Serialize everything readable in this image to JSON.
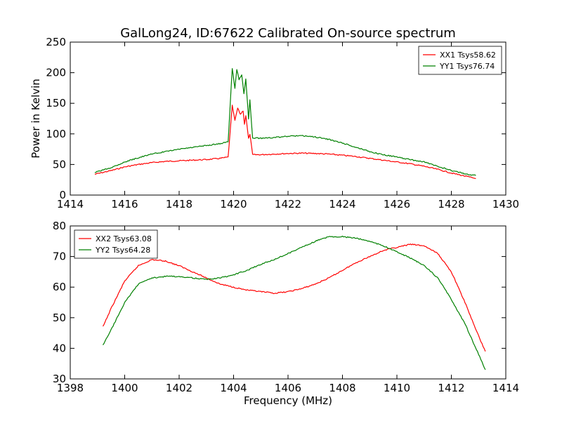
{
  "title": "GalLong24, ID:67622 Calibrated On-source spectrum",
  "chart_data": [
    {
      "type": "line",
      "xlabel": "",
      "ylabel": "Power in Kelvin",
      "xlim": [
        1414,
        1430
      ],
      "ylim": [
        0,
        250
      ],
      "xticks": [
        1414,
        1416,
        1418,
        1420,
        1422,
        1424,
        1426,
        1428,
        1430
      ],
      "yticks": [
        0,
        50,
        100,
        150,
        200,
        250
      ],
      "grid": false,
      "legend": "top-right",
      "series": [
        {
          "name": "XX1 Tsys58.62",
          "color": "#ff0000",
          "points": [
            [
              1414.9,
              34
            ],
            [
              1415.5,
              40
            ],
            [
              1416.0,
              46
            ],
            [
              1416.5,
              50
            ],
            [
              1417.0,
              53
            ],
            [
              1417.5,
              55
            ],
            [
              1418.0,
              56
            ],
            [
              1418.5,
              57
            ],
            [
              1419.0,
              58
            ],
            [
              1419.5,
              60
            ],
            [
              1419.8,
              62
            ],
            [
              1419.95,
              146
            ],
            [
              1420.05,
              122
            ],
            [
              1420.15,
              142
            ],
            [
              1420.25,
              132
            ],
            [
              1420.35,
              138
            ],
            [
              1420.4,
              116
            ],
            [
              1420.45,
              130
            ],
            [
              1420.55,
              92
            ],
            [
              1420.6,
              100
            ],
            [
              1420.7,
              66
            ],
            [
              1421.0,
              66
            ],
            [
              1421.5,
              67
            ],
            [
              1422.0,
              68
            ],
            [
              1422.5,
              68.5
            ],
            [
              1423.0,
              68
            ],
            [
              1423.5,
              67
            ],
            [
              1424.0,
              65
            ],
            [
              1424.5,
              63
            ],
            [
              1425.0,
              60
            ],
            [
              1425.5,
              57
            ],
            [
              1426.0,
              54
            ],
            [
              1426.5,
              51
            ],
            [
              1427.0,
              47
            ],
            [
              1427.5,
              42
            ],
            [
              1428.0,
              36
            ],
            [
              1428.5,
              31
            ],
            [
              1428.9,
              27
            ]
          ]
        },
        {
          "name": "YY1 Tsys76.74",
          "color": "#008000",
          "points": [
            [
              1414.9,
              37
            ],
            [
              1415.5,
              45
            ],
            [
              1416.0,
              54
            ],
            [
              1416.5,
              61
            ],
            [
              1417.0,
              67
            ],
            [
              1417.5,
              71
            ],
            [
              1418.0,
              75
            ],
            [
              1418.5,
              78
            ],
            [
              1419.0,
              81
            ],
            [
              1419.5,
              84
            ],
            [
              1419.8,
              87
            ],
            [
              1419.95,
              207
            ],
            [
              1420.05,
              175
            ],
            [
              1420.12,
              206
            ],
            [
              1420.2,
              188
            ],
            [
              1420.3,
              197
            ],
            [
              1420.38,
              165
            ],
            [
              1420.45,
              190
            ],
            [
              1420.55,
              125
            ],
            [
              1420.6,
              155
            ],
            [
              1420.7,
              93
            ],
            [
              1421.0,
              93
            ],
            [
              1421.5,
              94
            ],
            [
              1422.0,
              96
            ],
            [
              1422.5,
              97
            ],
            [
              1423.0,
              95
            ],
            [
              1423.5,
              91
            ],
            [
              1424.0,
              85
            ],
            [
              1424.5,
              78
            ],
            [
              1425.0,
              71
            ],
            [
              1425.5,
              66
            ],
            [
              1426.0,
              62
            ],
            [
              1426.5,
              58
            ],
            [
              1427.0,
              54
            ],
            [
              1427.5,
              47
            ],
            [
              1428.0,
              40
            ],
            [
              1428.5,
              35
            ],
            [
              1428.9,
              32
            ]
          ]
        }
      ]
    },
    {
      "type": "line",
      "xlabel": "Frequency (MHz)",
      "ylabel": "",
      "xlim": [
        1398,
        1414
      ],
      "ylim": [
        30,
        80
      ],
      "xticks": [
        1398,
        1400,
        1402,
        1404,
        1406,
        1408,
        1410,
        1412,
        1414
      ],
      "yticks": [
        30,
        40,
        50,
        60,
        70,
        80
      ],
      "grid": false,
      "legend": "top-left",
      "series": [
        {
          "name": "XX2 Tsys63.08",
          "color": "#ff0000",
          "points": [
            [
              1399.2,
              47
            ],
            [
              1399.5,
              53
            ],
            [
              1400.0,
              62
            ],
            [
              1400.5,
              67
            ],
            [
              1401.0,
              69
            ],
            [
              1401.5,
              68.5
            ],
            [
              1402.0,
              67
            ],
            [
              1402.5,
              65
            ],
            [
              1403.0,
              63
            ],
            [
              1403.5,
              61
            ],
            [
              1404.0,
              60
            ],
            [
              1404.5,
              59
            ],
            [
              1405.0,
              58.5
            ],
            [
              1405.5,
              58
            ],
            [
              1406.0,
              58.5
            ],
            [
              1406.5,
              59.5
            ],
            [
              1407.0,
              61
            ],
            [
              1407.5,
              63
            ],
            [
              1408.0,
              65.5
            ],
            [
              1408.5,
              68
            ],
            [
              1409.0,
              70
            ],
            [
              1409.5,
              72
            ],
            [
              1410.0,
              73
            ],
            [
              1410.5,
              74
            ],
            [
              1411.0,
              73.5
            ],
            [
              1411.5,
              71
            ],
            [
              1412.0,
              65
            ],
            [
              1412.5,
              55
            ],
            [
              1413.0,
              44
            ],
            [
              1413.25,
              39
            ]
          ]
        },
        {
          "name": "YY2 Tsys64.28",
          "color": "#008000",
          "points": [
            [
              1399.2,
              41
            ],
            [
              1399.5,
              46
            ],
            [
              1400.0,
              55
            ],
            [
              1400.5,
              61
            ],
            [
              1401.0,
              63
            ],
            [
              1401.5,
              63.5
            ],
            [
              1402.0,
              63.5
            ],
            [
              1402.5,
              63
            ],
            [
              1403.0,
              62.5
            ],
            [
              1403.5,
              63
            ],
            [
              1404.0,
              64
            ],
            [
              1404.5,
              65.5
            ],
            [
              1405.0,
              67.5
            ],
            [
              1405.5,
              69
            ],
            [
              1406.0,
              71
            ],
            [
              1406.5,
              73
            ],
            [
              1407.0,
              75
            ],
            [
              1407.5,
              76.5
            ],
            [
              1408.0,
              76.5
            ],
            [
              1408.5,
              76
            ],
            [
              1409.0,
              75
            ],
            [
              1409.5,
              73.5
            ],
            [
              1410.0,
              71.5
            ],
            [
              1410.5,
              69.5
            ],
            [
              1411.0,
              67
            ],
            [
              1411.5,
              63
            ],
            [
              1412.0,
              56
            ],
            [
              1412.5,
              48
            ],
            [
              1413.0,
              38
            ],
            [
              1413.25,
              33
            ]
          ]
        }
      ]
    }
  ]
}
